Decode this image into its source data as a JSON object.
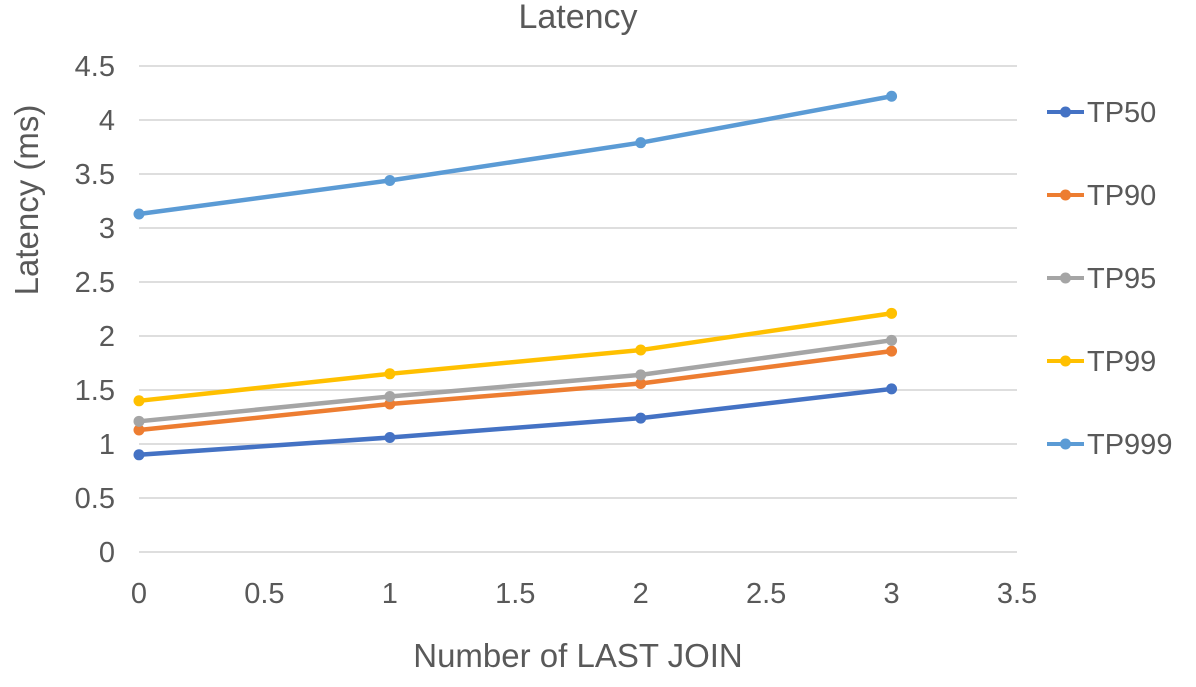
{
  "chart_data": {
    "type": "line",
    "title": "Latency",
    "xlabel": "Number of LAST JOIN",
    "ylabel": "Latency (ms)",
    "x": [
      0,
      1,
      2,
      3
    ],
    "series": [
      {
        "name": "TP50",
        "color": "#4472C4",
        "values": [
          0.9,
          1.06,
          1.24,
          1.51
        ]
      },
      {
        "name": "TP90",
        "color": "#ED7D31",
        "values": [
          1.13,
          1.37,
          1.56,
          1.86
        ]
      },
      {
        "name": "TP95",
        "color": "#A5A5A5",
        "values": [
          1.21,
          1.44,
          1.64,
          1.96
        ]
      },
      {
        "name": "TP99",
        "color": "#FFC000",
        "values": [
          1.4,
          1.65,
          1.87,
          2.21
        ]
      },
      {
        "name": "TP999",
        "color": "#5B9BD5",
        "values": [
          3.13,
          3.44,
          3.79,
          4.22
        ]
      }
    ],
    "xlim": [
      0,
      3.5
    ],
    "ylim": [
      0,
      4.5
    ],
    "x_ticks": [
      "0",
      "0.5",
      "1",
      "1.5",
      "2",
      "2.5",
      "3",
      "3.5"
    ],
    "y_ticks": [
      "0",
      "0.5",
      "1",
      "1.5",
      "2",
      "2.5",
      "3",
      "3.5",
      "4",
      "4.5"
    ],
    "grid": true,
    "gridline_color": "#D9D9D9",
    "text_color": "#595959",
    "legend_position": "right",
    "marker": "circle"
  }
}
